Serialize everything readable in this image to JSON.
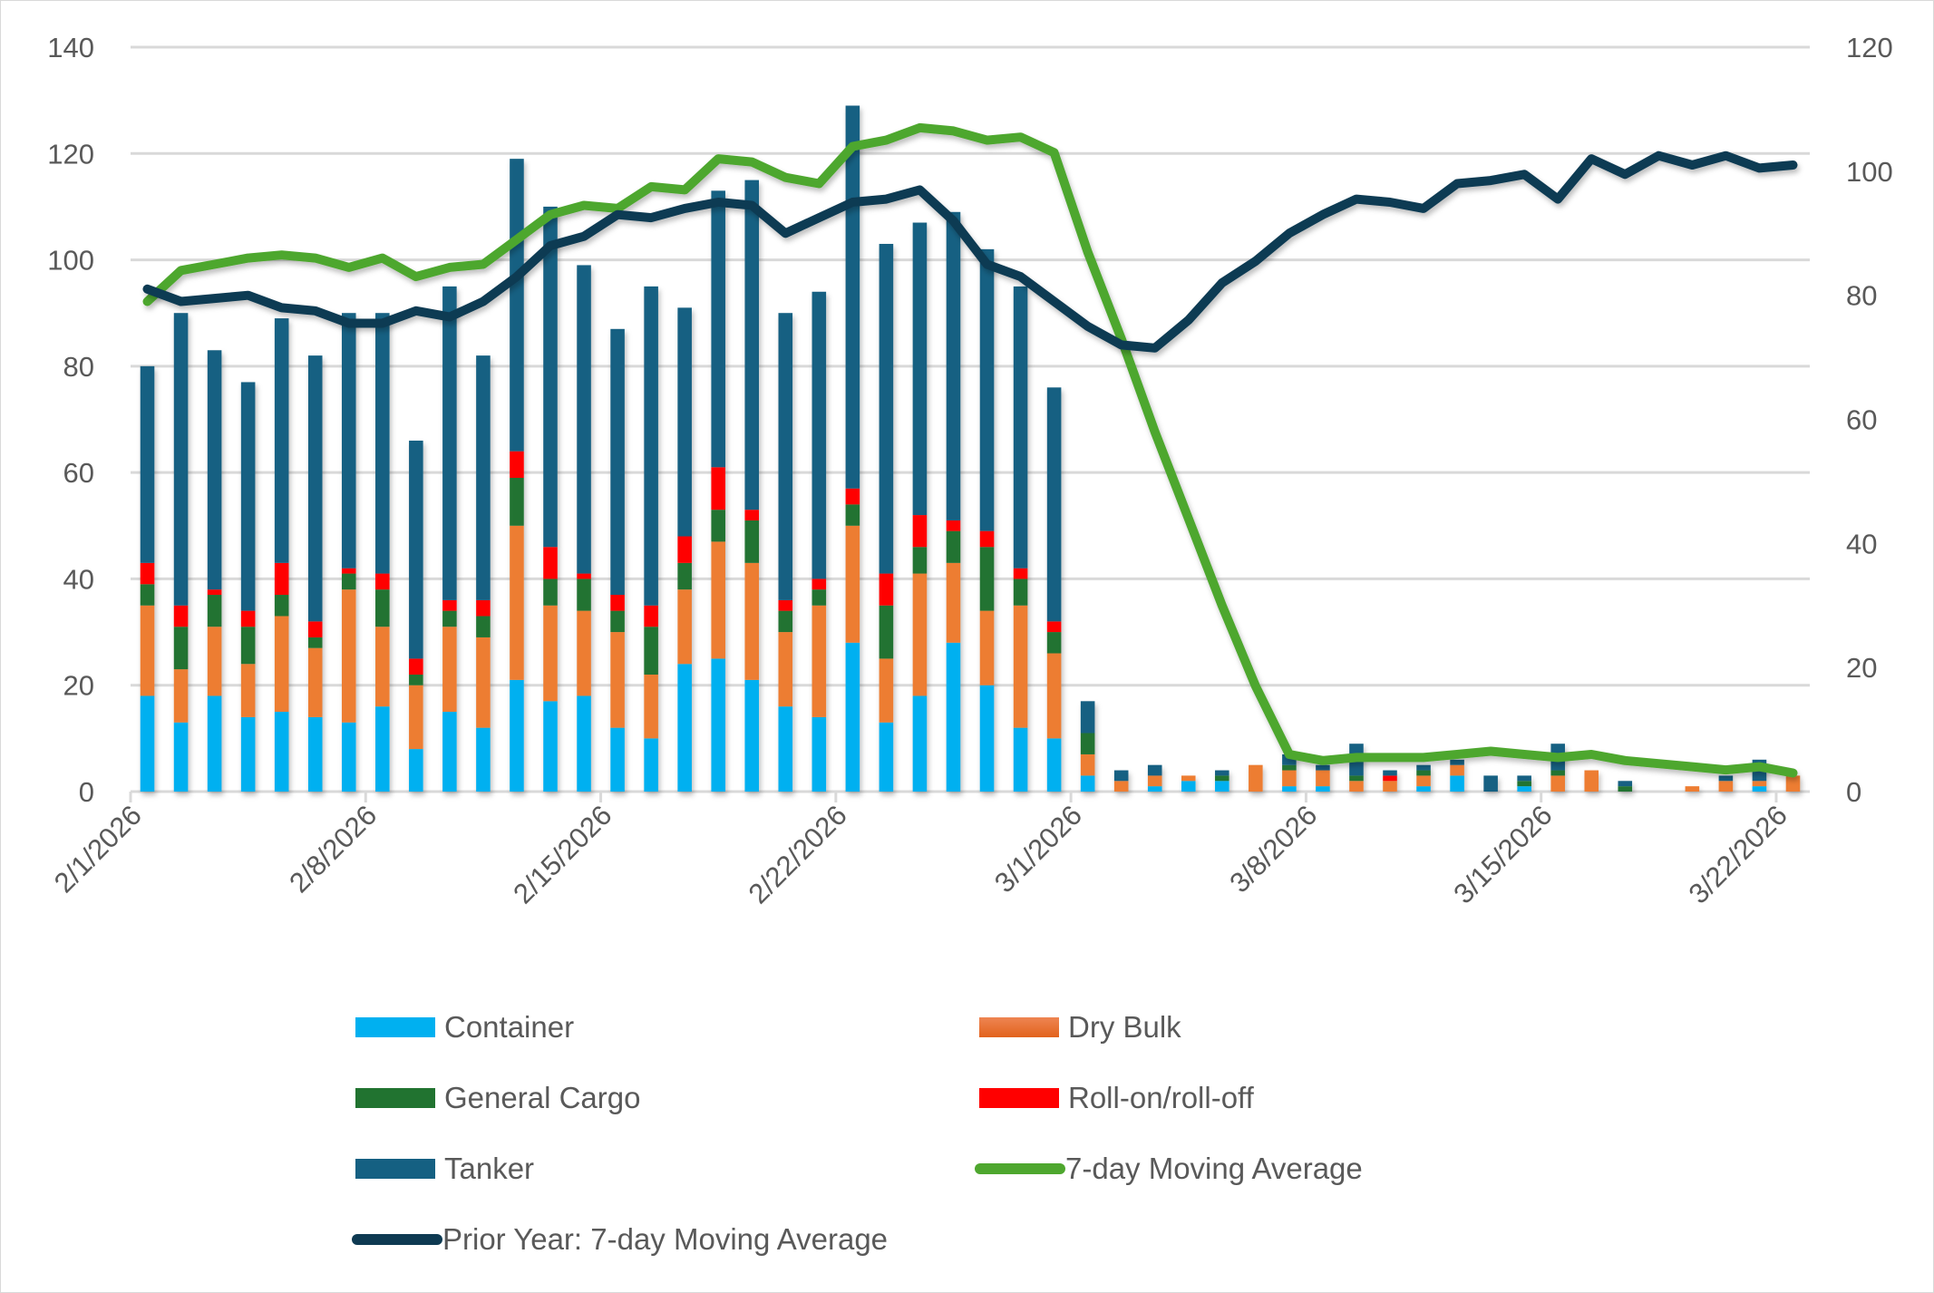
{
  "chart_data": {
    "type": "bar",
    "subtype": "stacked-bar-with-lines-dual-axis",
    "title": "",
    "xlabel": "",
    "ylabel": "",
    "ylim": [
      0,
      140
    ],
    "y_ticks": [
      0,
      20,
      40,
      60,
      80,
      100,
      120,
      140
    ],
    "y2lim": [
      0,
      120
    ],
    "y2_ticks": [
      0,
      20,
      40,
      60,
      80,
      100,
      120
    ],
    "grid": true,
    "legend_position": "bottom",
    "x_tick_labels": [
      "2/1/2026",
      "2/8/2026",
      "2/15/2026",
      "2/22/2026",
      "3/1/2026",
      "3/8/2026",
      "3/15/2026",
      "3/22/2026"
    ],
    "categories": [
      "2/1",
      "2/2",
      "2/3",
      "2/4",
      "2/5",
      "2/6",
      "2/7",
      "2/8",
      "2/9",
      "2/10",
      "2/11",
      "2/12",
      "2/13",
      "2/14",
      "2/15",
      "2/16",
      "2/17",
      "2/18",
      "2/19",
      "2/20",
      "2/21",
      "2/22",
      "2/23",
      "2/24",
      "2/25",
      "2/26",
      "2/27",
      "2/28",
      "3/1",
      "3/2",
      "3/3",
      "3/4",
      "3/5",
      "3/6",
      "3/7",
      "3/8",
      "3/9",
      "3/10",
      "3/11",
      "3/12",
      "3/13",
      "3/14",
      "3/15",
      "3/16",
      "3/17",
      "3/18",
      "3/19",
      "3/20",
      "3/21",
      "3/22"
    ],
    "series": [
      {
        "name": "Container",
        "kind": "bar",
        "axis": "left",
        "color": "#00B0F0",
        "values": [
          18,
          13,
          18,
          14,
          15,
          14,
          13,
          16,
          8,
          15,
          12,
          21,
          17,
          18,
          12,
          10,
          24,
          25,
          21,
          16,
          14,
          28,
          13,
          18,
          28,
          20,
          12,
          10,
          3,
          0,
          1,
          2,
          2,
          0,
          1,
          1,
          0,
          0,
          1,
          3,
          0,
          1,
          0,
          0,
          0,
          0,
          0,
          0,
          1,
          0
        ]
      },
      {
        "name": "Dry Bulk",
        "kind": "bar",
        "axis": "left",
        "color": "#ED7D31",
        "values": [
          17,
          10,
          13,
          10,
          18,
          13,
          25,
          15,
          12,
          16,
          17,
          29,
          18,
          16,
          18,
          12,
          14,
          22,
          22,
          14,
          21,
          22,
          12,
          23,
          15,
          14,
          23,
          16,
          4,
          2,
          2,
          1,
          0,
          5,
          3,
          3,
          2,
          2,
          2,
          2,
          0,
          0,
          3,
          4,
          0,
          0,
          1,
          2,
          1,
          3
        ]
      },
      {
        "name": "General Cargo",
        "kind": "bar",
        "axis": "left",
        "color": "#217330",
        "values": [
          4,
          8,
          6,
          7,
          4,
          2,
          3,
          7,
          2,
          3,
          4,
          9,
          5,
          6,
          4,
          9,
          5,
          6,
          8,
          4,
          3,
          4,
          10,
          5,
          6,
          12,
          5,
          4,
          4,
          0,
          0,
          0,
          1,
          0,
          1,
          0,
          1,
          0,
          1,
          0,
          0,
          1,
          1,
          0,
          1,
          0,
          0,
          0,
          0,
          0
        ]
      },
      {
        "name": "Roll-on/roll-off",
        "kind": "bar",
        "axis": "left",
        "color": "#FF0000",
        "values": [
          4,
          4,
          1,
          3,
          6,
          3,
          1,
          3,
          3,
          2,
          3,
          5,
          6,
          1,
          3,
          4,
          5,
          8,
          2,
          2,
          2,
          3,
          6,
          6,
          2,
          3,
          2,
          2,
          0,
          0,
          0,
          0,
          0,
          0,
          0,
          0,
          0,
          1,
          0,
          0,
          0,
          0,
          0,
          0,
          0,
          0,
          0,
          0,
          0,
          0
        ]
      },
      {
        "name": "Tanker",
        "kind": "bar",
        "axis": "left",
        "color": "#156082",
        "values": [
          37,
          55,
          45,
          43,
          46,
          50,
          48,
          49,
          41,
          59,
          46,
          55,
          64,
          58,
          50,
          60,
          43,
          52,
          62,
          54,
          54,
          72,
          62,
          55,
          58,
          53,
          53,
          44,
          6,
          2,
          2,
          0,
          1,
          0,
          2,
          1,
          6,
          1,
          1,
          1,
          3,
          1,
          5,
          0,
          1,
          0,
          0,
          1,
          4,
          0
        ]
      },
      {
        "name": "7-day Moving Average",
        "kind": "line",
        "axis": "right",
        "color": "#4EA72E",
        "values": [
          79,
          84,
          85,
          86,
          86.5,
          86,
          84.5,
          86,
          83,
          84.5,
          85,
          89,
          93,
          94.5,
          94,
          97.5,
          97,
          102,
          101.5,
          99,
          98,
          104,
          105,
          107,
          106.5,
          105,
          105.5,
          103,
          87,
          73,
          58,
          44,
          30,
          17,
          6,
          5,
          5.5,
          5.5,
          5.5,
          6,
          6.5,
          6,
          5.5,
          6,
          5,
          4.5,
          4,
          3.5,
          4,
          3
        ]
      },
      {
        "name": "Prior Year: 7-day Moving Average",
        "kind": "line",
        "axis": "right",
        "color": "#0E3A52",
        "values": [
          81,
          79,
          79.5,
          80,
          78,
          77.5,
          75.5,
          75.5,
          77.5,
          76.5,
          79,
          83,
          88,
          89.5,
          93,
          92.5,
          94,
          95,
          94.5,
          90,
          92.5,
          95,
          95.5,
          97,
          92,
          85,
          83,
          79,
          75,
          72,
          71.5,
          76,
          82,
          85.5,
          90,
          93,
          95.5,
          95,
          94,
          98,
          98.5,
          99.5,
          95.5,
          102,
          99.5,
          102.5,
          101,
          102.5,
          100.5,
          101
        ]
      }
    ]
  },
  "legend": {
    "items": [
      {
        "label": "Container",
        "color": "#00B0F0",
        "type": "box"
      },
      {
        "label": "Dry Bulk",
        "color": "#ED7D31",
        "type": "box"
      },
      {
        "label": "General Cargo",
        "color": "#217330",
        "type": "box"
      },
      {
        "label": "Roll-on/roll-off",
        "color": "#FF0000",
        "type": "box"
      },
      {
        "label": "Tanker",
        "color": "#156082",
        "type": "box"
      },
      {
        "label": "7-day Moving Average",
        "color": "#4EA72E",
        "type": "line"
      },
      {
        "label": "Prior Year: 7-day Moving Average",
        "color": "#0E3A52",
        "type": "line"
      }
    ]
  }
}
